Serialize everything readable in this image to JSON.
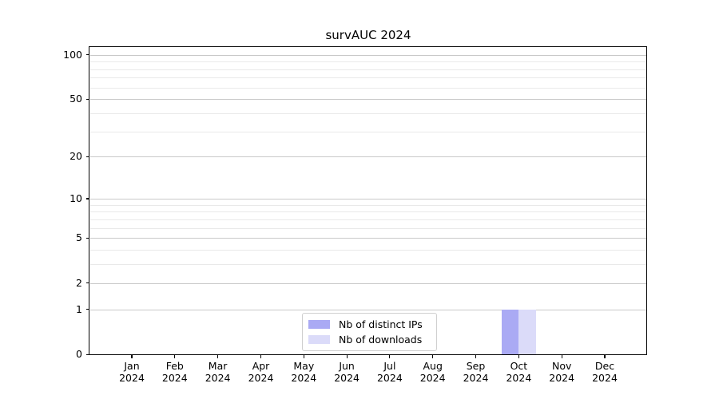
{
  "chart_data": {
    "type": "bar",
    "title": "survAUC 2024",
    "xlabel": "",
    "ylabel": "",
    "year": "2024",
    "categories": [
      "Jan",
      "Feb",
      "Mar",
      "Apr",
      "May",
      "Jun",
      "Jul",
      "Aug",
      "Sep",
      "Oct",
      "Nov",
      "Dec"
    ],
    "series": [
      {
        "name": "Nb of distinct IPs",
        "color": "#aaaaf4",
        "values": [
          0,
          0,
          0,
          0,
          0,
          0,
          0,
          0,
          0,
          1,
          0,
          0
        ]
      },
      {
        "name": "Nb of downloads",
        "color": "#dbdbf9",
        "values": [
          0,
          0,
          0,
          0,
          0,
          0,
          0,
          0,
          0,
          1,
          0,
          0
        ]
      }
    ],
    "yscale": "log1p",
    "ylim": [
      0,
      114
    ],
    "y_major_ticks": [
      0,
      1,
      2,
      5,
      10,
      20,
      50,
      100
    ],
    "y_minor_ticks": [
      3,
      4,
      6,
      7,
      8,
      9,
      30,
      40,
      60,
      70,
      80,
      90
    ],
    "grid": "horizontal-only",
    "legend_position": "lower-center",
    "colors": {
      "major_grid": "#c9c9c9",
      "minor_grid": "#e9e9e9",
      "spine": "#000000",
      "text": "#000000",
      "background": "#ffffff"
    }
  }
}
